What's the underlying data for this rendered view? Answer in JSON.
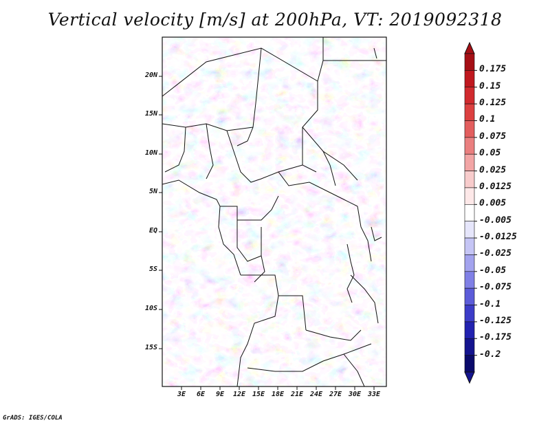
{
  "title": "Vertical velocity [m/s] at 200hPa, VT: 2019092318",
  "credit": "GrADS: IGES/COLA",
  "map": {
    "lat_labels": [
      "20N",
      "15N",
      "10N",
      "5N",
      "EQ",
      "5S",
      "10S",
      "15S"
    ],
    "lon_labels": [
      "3E",
      "6E",
      "9E",
      "12E",
      "15E",
      "18E",
      "21E",
      "24E",
      "27E",
      "30E",
      "33E"
    ],
    "field": "vertical velocity",
    "units": "m/s",
    "level": "200hPa",
    "valid_time": "2019092318"
  },
  "colorbar": {
    "labels": [
      "0.175",
      "0.15",
      "0.125",
      "0.1",
      "0.075",
      "0.05",
      "0.025",
      "0.0125",
      "0.005",
      "-0.005",
      "-0.0125",
      "-0.025",
      "-0.05",
      "-0.075",
      "-0.1",
      "-0.125",
      "-0.175",
      "-0.2"
    ],
    "colors": [
      "#a50f15",
      "#c0181f",
      "#d12a2e",
      "#dc4040",
      "#e35e5e",
      "#ea7f7f",
      "#f2a5a5",
      "#f8cccc",
      "#fde8e8",
      "#ffffff",
      "#e6e6fb",
      "#c5c5f5",
      "#a3a3ee",
      "#8080e6",
      "#5c5cd9",
      "#3c3cc8",
      "#2222b0",
      "#14148f",
      "#0a0a6b"
    ],
    "top_color": "#a50f15",
    "bottom_color": "#14148f"
  }
}
